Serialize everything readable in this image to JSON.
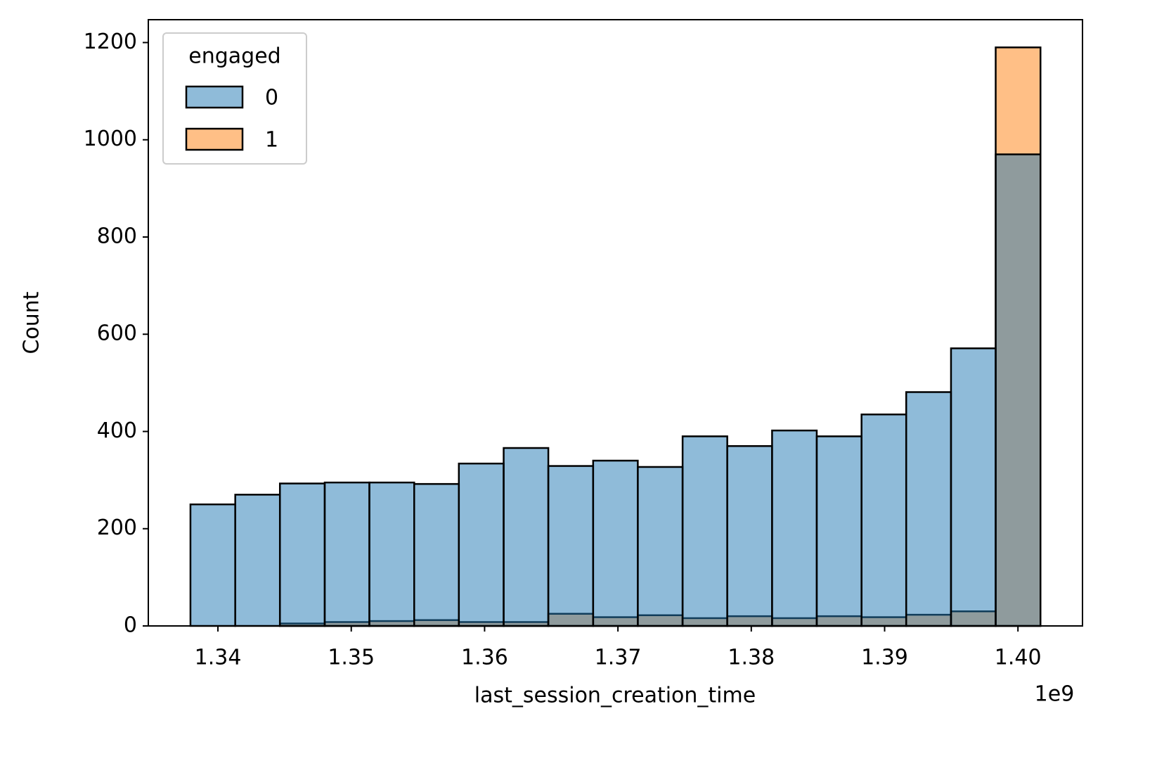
{
  "chart_data": {
    "type": "histogram",
    "xlabel": "last_session_creation_time",
    "ylabel": "Count",
    "x_offset_label": "1e9",
    "bins": [
      1.33794,
      1.3413,
      1.34465,
      1.34801,
      1.35136,
      1.35472,
      1.35807,
      1.36143,
      1.36478,
      1.36814,
      1.37149,
      1.37485,
      1.3782,
      1.38156,
      1.38491,
      1.38827,
      1.39162,
      1.39498,
      1.39833,
      1.40169
    ],
    "series": [
      {
        "name": "0",
        "color": "#1f77b4",
        "values": [
          250,
          270,
          293,
          295,
          295,
          292,
          334,
          366,
          329,
          340,
          327,
          390,
          370,
          402,
          390,
          435,
          481,
          571,
          970
        ]
      },
      {
        "name": "1",
        "color": "#ff7f0e",
        "values": [
          0,
          0,
          5,
          8,
          10,
          12,
          8,
          8,
          25,
          18,
          22,
          16,
          20,
          16,
          20,
          18,
          23,
          30,
          1190
        ]
      }
    ],
    "legend_title": "engaged",
    "legend_position": "upper left",
    "xlim": [
      1.33478,
      1.40484
    ],
    "xticks": [
      1.34,
      1.35,
      1.36,
      1.37,
      1.38,
      1.39,
      {
        "value": 1.4,
        "label": "1.40"
      }
    ],
    "ylim": [
      0,
      1247
    ],
    "yticks": [
      0,
      200,
      400,
      600,
      800,
      1000,
      1200
    ]
  }
}
